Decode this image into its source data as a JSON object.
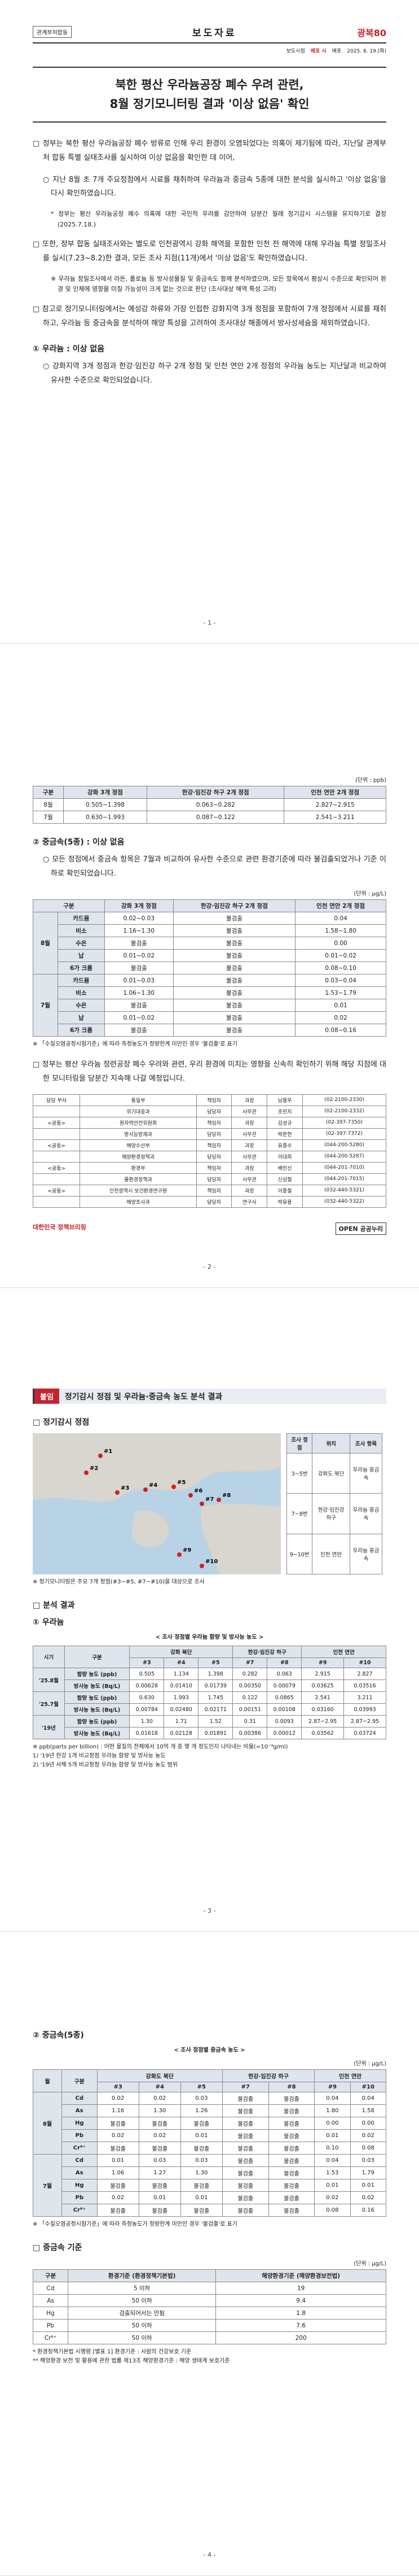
{
  "page1": {
    "agency": "관계부처합동",
    "doc_type": "보도자료",
    "logo": "광복80",
    "release": [
      "보도시점",
      "배포 시",
      "배포",
      "2025. 8. 19.(화)"
    ],
    "title_line1": "북한 평산 우라늄공장 폐수 우려 관련,",
    "title_line2": "8월 정기모니터링 결과 '이상 없음' 확인",
    "paragraphs": [
      "□ 정부는 북한 평산 우라늄공장 폐수 방류로 인해 우리 환경이 오염되었다는 의혹이 제기됨에 따라, 지난달 관계부처 합동 특별 실태조사를 실시하여 이상 없음을 확인한 데 이어,",
      "○ 지난 8월 초 7개 주요정점에서 시료를 채취하여 우라늄과 중금속 5종에 대한 분석을 실시하고 '이상 없음'을 다시 확인하였습니다.",
      "* 정부는 평산 우라늄공장 폐수 의혹에 대한 국민적 우려를 감안하여 당분간 월례 정기감시 시스템을 유지하기로 결정(2025.7.18.)",
      "□ 또한, 정부 합동 실태조사와는 별도로 인천광역시 강화 해역을 포함한 인천 전 해역에 대해 우라늄 특별 정밀조사를 실시(7.23~8.2)한 결과, 모든 조사 지점(11개)에서 '이상 없음'도 확인하였습니다.",
      "※ 우라늄 정밀조사에서 라돈, 폴로늄 등 방사성물질 및 중금속도 함께 분석하였으며, 모든 항목에서 평상시 수준으로 확인되어 환경 및 인체에 영향을 미칠 가능성이 크게 없는 것으로 판단 (조사대상 해역 특성 고려)",
      "□ 참고로 정기모니터링에서는 예성강 하류와 가장 인접한 강화지역 3개 정점을 포함하여 7개 정점에서 시료를 채취하고, 우라늄 등 중금속을 분석하여 해양 특성을 고려하여 조사대상 해종에서 방사성세슘을 제외하였습니다."
    ],
    "section": "① 우라늄 : 이상 없음",
    "section_text": "○ 강화지역 3개 정점과 한강·임진강 하구 2개 정점 및 인천 연안 2개 정점의 우라늄 농도는 지난달과 비교하여 유사한 수준으로 확인되었습니다.",
    "page_no": "- 1 -"
  },
  "page2": {
    "uranium_unit": "(단위 : ppb)",
    "uranium_head": [
      "구분",
      "강화 3개 정점",
      "한강·임진강 하구 2개 정점",
      "인천 연안 2개 정점"
    ],
    "uranium_rows": [
      [
        "8월",
        "0.505~1.398",
        "0.063~0.282",
        "2.827~2.915"
      ],
      [
        "7월",
        "0.630~1.993",
        "0.087~0.122",
        "2.541~3.211"
      ]
    ],
    "section": "② 중금속(5종) : 이상 없음",
    "section_text": "○ 모든 정점에서 중금속 항목은 7월과 비교하여 유사한 수준으로 관련 환경기준에 따라 불검출되었거나 기준 이하로 확인되었습니다.",
    "metals_unit": "(단위 : μg/L)",
    "metals_head": [
      "구분",
      "강화 3개 정점",
      "한강·임진강 하구 2개 정점",
      "인천 연안 2개 정점"
    ],
    "metals_groups": [
      {
        "label": "8월",
        "rows": [
          [
            "카드뮴",
            "0.02~0.03",
            "불검출",
            "0.04"
          ],
          [
            "비소",
            "1.16~1.30",
            "불검출",
            "1.58~1.80"
          ],
          [
            "수은",
            "불검출",
            "불검출",
            "0.00"
          ],
          [
            "납",
            "0.01~0.02",
            "불검출",
            "0.01~0.02"
          ],
          [
            "6가 크롬",
            "불검출",
            "불검출",
            "0.08~0.10"
          ]
        ]
      },
      {
        "label": "7월",
        "rows": [
          [
            "카드뮴",
            "0.01~0.03",
            "불검출",
            "0.03~0.04"
          ],
          [
            "비소",
            "1.06~1.30",
            "불검출",
            "1.53~1.79"
          ],
          [
            "수은",
            "불검출",
            "불검출",
            "0.01"
          ],
          [
            "납",
            "0.01~0.02",
            "불검출",
            "0.02"
          ],
          [
            "6가 크롬",
            "불검출",
            "불검출",
            "0.08~0.16"
          ]
        ]
      }
    ],
    "metals_note": "※ 「수질오염공정시험기준」에 따라 측정농도가 정량한계 미만인 경우 '불검출'로 표기",
    "closing": "□ 정부는 평산 우라늄 정련공장 폐수 우려와 관련, 우리 환경에 미치는 영향을 신속히 확인하기 위해 해당 지점에 대한 모니터링을 당분간 지속해 나갈 예정입니다.",
    "contacts": [
      [
        "담당 부서",
        "통일부",
        "책임자",
        "과장",
        "남용우",
        "(02-2100-2330)"
      ],
      [
        "",
        "위기대응과",
        "담당자",
        "사무관",
        "조민지",
        "(02-2100-2332)"
      ],
      [
        "<공동>",
        "원자력안전위원회",
        "책임자",
        "과장",
        "김성규",
        "(02-397-7350)"
      ],
      [
        "",
        "방사능방재과",
        "담당자",
        "사무관",
        "박준현",
        "(02-397-7372)"
      ],
      [
        "<공동>",
        "해양수산부",
        "책임자",
        "과장",
        "유종수",
        "(044-200-5280)"
      ],
      [
        "",
        "해양환경정책과",
        "담당자",
        "사무관",
        "이대희",
        "(044-200-5287)"
      ],
      [
        "<공동>",
        "환경부",
        "책임자",
        "과장",
        "배민선",
        "(044-201-7010)"
      ],
      [
        "",
        "물환경정책과",
        "담당자",
        "사무관",
        "신상철",
        "(044-201-7015)"
      ],
      [
        "<공동>",
        "인천광역시 보건환경연구원",
        "책임자",
        "과장",
        "이종철",
        "(032-440-5321)"
      ],
      [
        "",
        "해양조사과",
        "담당자",
        "연구사",
        "박유용",
        "(032-440-5322)"
      ]
    ],
    "footer_left": "대한민국 정책브리핑",
    "footer_right": "OPEN 공공누리",
    "page_no": "- 2 -"
  },
  "page3": {
    "attach_tag": "붙임",
    "attach_title": "정기감시 정점 및 우라늄·중금속 농도 분석 결과",
    "stations_title": "□ 정기감시 정점",
    "stations": [
      "#1",
      "#2",
      "#3",
      "#4",
      "#5",
      "#6",
      "#7",
      "#8",
      "#9",
      "#10"
    ],
    "station_head": [
      "조사 정점",
      "위치",
      "조사 항목"
    ],
    "station_rows": [
      [
        "3~5번",
        "강화도 북단",
        "우라늄 중금속"
      ],
      [
        "7~8번",
        "한강·임진강 하구",
        "우라늄 중금속"
      ],
      [
        "9~10번",
        "인천 연안",
        "우라늄 중금속"
      ]
    ],
    "map_caption": "※ 정기모니터링은 주요 7개 정점(#3~#5, #7~#10)을 대상으로 조사",
    "results_title": "□ 분석 결과",
    "uranium_title": "① 우라늄",
    "uranium_caption": "< 조사 정점별 우라늄 함량 및 방사능 농도 >",
    "head1": [
      "시기",
      "구분",
      "강화 북단",
      "한강·임진강 하구",
      "인천 연안"
    ],
    "head2": [
      "#3",
      "#4",
      "#5",
      "#7",
      "#8",
      "#9",
      "#10"
    ],
    "groups": [
      {
        "label": "'25.8월",
        "rows": [
          [
            "함량 농도 (ppb)",
            "0.505",
            "1.134",
            "1.398",
            "0.282",
            "0.063",
            "2.915",
            "2.827"
          ],
          [
            "방사능 농도 (Bq/L)",
            "0.00628",
            "0.01410",
            "0.01739",
            "0.00350",
            "0.00079",
            "0.03625",
            "0.03516"
          ]
        ]
      },
      {
        "label": "'25.7월",
        "rows": [
          [
            "함량 농도 (ppb)",
            "0.630",
            "1.993",
            "1.745",
            "0.122",
            "0.0865",
            "2.541",
            "3.211"
          ],
          [
            "방사능 농도 (Bq/L)",
            "0.00784",
            "0.02480",
            "0.02171",
            "0.00151",
            "0.00108",
            "0.03160",
            "0.03993"
          ]
        ]
      },
      {
        "label": "'19년",
        "rows": [
          [
            "함량 농도 (ppb)",
            "1.30",
            "1.71",
            "1.52",
            "0.31",
            "0.0093",
            "2.87~2.95",
            "2.87~2.95"
          ],
          [
            "방사능 농도 (Bq/L)",
            "0.01618",
            "0.02128",
            "0.01891",
            "0.00386",
            "0.00012",
            "0.03562",
            "0.03724"
          ]
        ]
      }
    ],
    "notes": [
      "※ ppb(parts per billion) : 어떤 물질의 전체에서 10억 개 중 몇 개 정도인지 나타내는 비율(=10⁻⁹g/ml)",
      "1) '19년 한강 1개 비교정점 우라늄 함량 및 방사능 농도",
      "2) '19년 서해 5개 비교정점 우라늄 함량 및 방사능 농도 범위"
    ],
    "page_no": "- 3 -"
  },
  "page4": {
    "title": "② 중금속(5종)",
    "caption": "< 조사 정점별 중금속 농도 >",
    "unit": "(단위 : μg/L)",
    "head1": [
      "월",
      "구분",
      "강화도 북단",
      "한강·임진강 하구",
      "인천 연안"
    ],
    "head2": [
      "#3",
      "#4",
      "#5",
      "#7",
      "#8",
      "#9",
      "#10"
    ],
    "groups": [
      {
        "label": "8월",
        "rows": [
          [
            "Cd",
            "0.02",
            "0.02",
            "0.03",
            "불검출",
            "불검출",
            "0.04",
            "0.04"
          ],
          [
            "As",
            "1.16",
            "1.30",
            "1.26",
            "불검출",
            "불검출",
            "1.80",
            "1.58"
          ],
          [
            "Hg",
            "불검출",
            "불검출",
            "불검출",
            "불검출",
            "불검출",
            "0.00",
            "0.00"
          ],
          [
            "Pb",
            "0.02",
            "0.02",
            "0.01",
            "불검출",
            "불검출",
            "0.01",
            "0.02"
          ],
          [
            "Cr⁶⁺",
            "불검출",
            "불검출",
            "불검출",
            "불검출",
            "불검출",
            "0.10",
            "0.08"
          ]
        ]
      },
      {
        "label": "7월",
        "rows": [
          [
            "Cd",
            "0.01",
            "0.03",
            "0.03",
            "불검출",
            "불검출",
            "0.04",
            "0.03"
          ],
          [
            "As",
            "1.06",
            "1.27",
            "1.30",
            "불검출",
            "불검출",
            "1.53",
            "1.79"
          ],
          [
            "Hg",
            "불검출",
            "불검출",
            "불검출",
            "불검출",
            "불검출",
            "0.01",
            "0.01"
          ],
          [
            "Pb",
            "0.02",
            "0.01",
            "0.01",
            "불검출",
            "불검출",
            "0.02",
            "0.02"
          ],
          [
            "Cr⁶⁺",
            "불검출",
            "불검출",
            "불검출",
            "불검출",
            "불검출",
            "0.08",
            "0.16"
          ]
        ]
      }
    ],
    "note": "※ 「수질오염공정시험기준」에 따라 측정농도가 정량한계 미만인 경우 '불검출'로 표기",
    "std_title": "□ 중금속 기준",
    "std_unit": "(단위 : μg/L)",
    "std_head": [
      "구분",
      "환경기준 (환경정책기본법)",
      "해양환경기준 (해양환경보전법)"
    ],
    "std_rows": [
      [
        "Cd",
        "5 이하",
        "19"
      ],
      [
        "As",
        "50 이하",
        "9.4"
      ],
      [
        "Hg",
        "검출되어서는 안됨",
        "1.8"
      ],
      [
        "Pb",
        "50 이하",
        "7.6"
      ],
      [
        "Cr⁶⁺",
        "50 이하",
        "200"
      ]
    ],
    "std_notes": [
      "* 환경정책기본법 시행령 [별표 1] 환경기준 : 사람의 건강보호 기준",
      "** 해양환경 보전 및 활용에 관한 법률 제13조 해양환경기준 : 해양 생태계 보호기준"
    ],
    "page_no": "- 4 -"
  }
}
